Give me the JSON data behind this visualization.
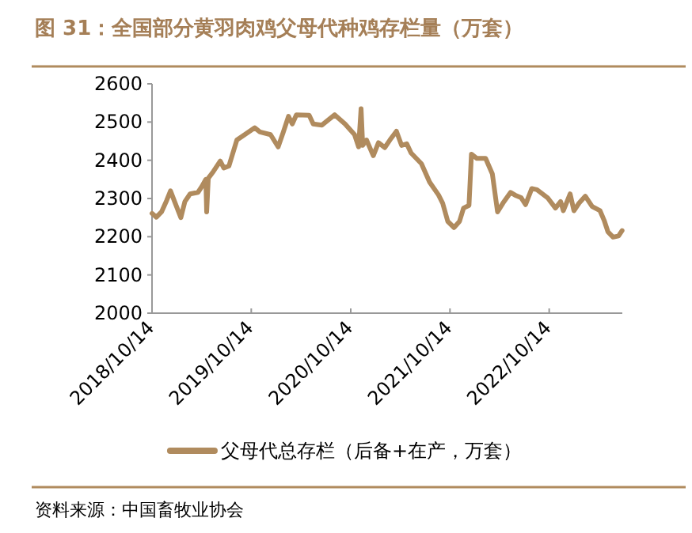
{
  "chart_data": {
    "type": "line",
    "title": "图 31：全国部分黄羽肉鸡父母代种鸡存栏量（万套）",
    "annotations": [
      "资料来源：中国畜牧业协会"
    ],
    "x": [
      "2018-10-14",
      "2018-10-30",
      "2018-11-18",
      "2018-12-07",
      "2018-12-21",
      "2019-01-05",
      "2019-01-28",
      "2019-02-12",
      "2019-03-03",
      "2019-04-01",
      "2019-04-14",
      "2019-04-30",
      "2019-05-03",
      "2019-05-09",
      "2019-05-28",
      "2019-06-22",
      "2019-07-05",
      "2019-07-24",
      "2019-08-22",
      "2019-09-20",
      "2019-10-27",
      "2019-11-15",
      "2019-12-24",
      "2020-01-21",
      "2020-02-09",
      "2020-02-28",
      "2020-03-13",
      "2020-03-28",
      "2020-05-14",
      "2020-05-29",
      "2020-06-30",
      "2020-08-16",
      "2020-09-23",
      "2020-10-28",
      "2020-11-12",
      "2020-11-21",
      "2020-11-27",
      "2020-12-11",
      "2021-01-05",
      "2021-01-24",
      "2021-02-16",
      "2021-03-07",
      "2021-03-31",
      "2021-04-19",
      "2021-05-08",
      "2021-05-24",
      "2021-07-01",
      "2021-07-31",
      "2021-09-02",
      "2021-09-17",
      "2021-10-06",
      "2021-10-29",
      "2021-11-18",
      "2021-12-03",
      "2021-12-23",
      "2022-01-01",
      "2022-01-21",
      "2022-02-22",
      "2022-03-19",
      "2022-04-07",
      "2022-04-27",
      "2022-05-25",
      "2022-06-10",
      "2022-07-03",
      "2022-07-19",
      "2022-08-11",
      "2022-08-30",
      "2022-10-08",
      "2022-11-06",
      "2022-11-25",
      "2022-12-05",
      "2022-12-30",
      "2023-01-13",
      "2023-02-01",
      "2023-02-24",
      "2023-03-21",
      "2023-04-19",
      "2023-05-04",
      "2023-05-18",
      "2023-06-06",
      "2023-06-26",
      "2023-07-09"
    ],
    "series": [
      {
        "name": "父母代总存栏（后备+在产，万套）",
        "color": "#b08b5e",
        "values": [
          2261,
          2251,
          2265,
          2295,
          2320,
          2292,
          2250,
          2292,
          2312,
          2316,
          2330,
          2350,
          2265,
          2353,
          2371,
          2398,
          2380,
          2385,
          2453,
          2467,
          2485,
          2474,
          2467,
          2435,
          2474,
          2515,
          2495,
          2519,
          2518,
          2495,
          2492,
          2519,
          2495,
          2467,
          2435,
          2535,
          2439,
          2453,
          2412,
          2446,
          2433,
          2453,
          2476,
          2439,
          2443,
          2419,
          2391,
          2343,
          2309,
          2288,
          2240,
          2224,
          2240,
          2275,
          2282,
          2416,
          2405,
          2405,
          2364,
          2265,
          2288,
          2316,
          2309,
          2302,
          2284,
          2326,
          2323,
          2302,
          2275,
          2292,
          2268,
          2312,
          2268,
          2288,
          2306,
          2279,
          2268,
          2243,
          2213,
          2199,
          2202,
          2216
        ]
      }
    ],
    "xlim": [
      "2018-10-14",
      "2023-07-10"
    ],
    "ylim": [
      2000,
      2600
    ],
    "xticks": [
      {
        "value": "2018-10-14",
        "label": "2018/10/14"
      },
      {
        "value": "2019-10-14",
        "label": "2019/10/14"
      },
      {
        "value": "2020-10-14",
        "label": "2020/10/14"
      },
      {
        "value": "2021-10-14",
        "label": "2021/10/14"
      },
      {
        "value": "2022-10-14",
        "label": "2022/10/14"
      }
    ],
    "yticks": [
      2000,
      2100,
      2200,
      2300,
      2400,
      2500,
      2600
    ],
    "legend": "bottom"
  }
}
